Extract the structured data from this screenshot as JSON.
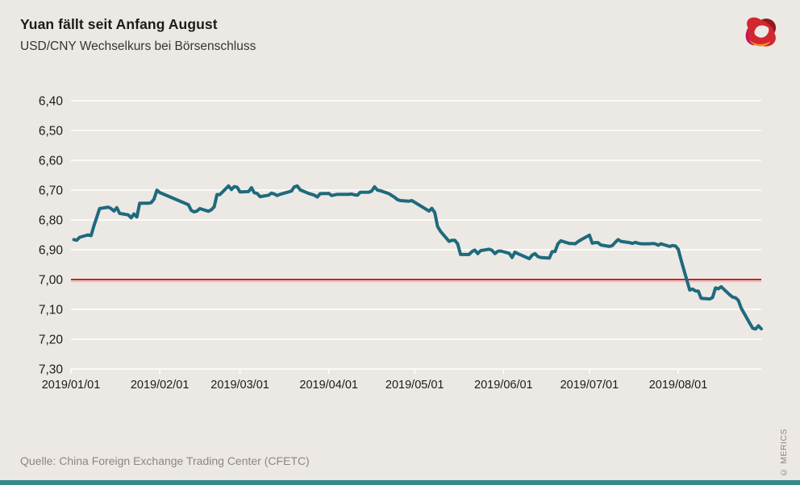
{
  "header": {
    "title": "Yuan fällt seit Anfang August",
    "subtitle": "USD/CNY Wechselkurs bei Börsenschluss"
  },
  "footer": {
    "source": "Quelle: China Foreign Exchange Trading Center (CFETC)",
    "copyright": "© MERICS"
  },
  "logo": {
    "name": "merics-logo"
  },
  "colors": {
    "background": "#ECE8E3",
    "line": "#1E6A7D",
    "reference_line": "#C82127",
    "reference_shadow": "#EBB9B4",
    "grid": "#FFFFFF",
    "axis_text": "#1d1b19",
    "muted_text": "#8d877f",
    "bottom_bar": "#37898D"
  },
  "chart_data": {
    "type": "line",
    "title": "Yuan fällt seit Anfang August",
    "subtitle": "USD/CNY Wechselkurs bei Börsenschluss",
    "xlabel": "",
    "ylabel": "",
    "grid": true,
    "legend": "none",
    "y_axis": {
      "min": 6.4,
      "max": 7.3,
      "inverted": true,
      "tick_step": 0.1,
      "tick_labels": [
        "6,40",
        "6,50",
        "6,60",
        "6,70",
        "6,80",
        "6,90",
        "7,00",
        "7,10",
        "7,20",
        "7,30"
      ]
    },
    "x_axis": {
      "start": "2019-01-01",
      "end": "2019-08-30",
      "tick_labels": [
        "2019/01/01",
        "2019/02/01",
        "2019/03/01",
        "2019/04/01",
        "2019/05/01",
        "2019/06/01",
        "2019/07/01",
        "2019/08/01"
      ]
    },
    "reference_line": {
      "value": 7.0,
      "color": "#C82127"
    },
    "series": [
      {
        "name": "USD/CNY Wechselkurs bei Börsenschluss",
        "color": "#1E6A7D",
        "points": [
          [
            "2019-01-02",
            6.866
          ],
          [
            "2019-01-03",
            6.868
          ],
          [
            "2019-01-04",
            6.858
          ],
          [
            "2019-01-07",
            6.85
          ],
          [
            "2019-01-08",
            6.853
          ],
          [
            "2019-01-09",
            6.82
          ],
          [
            "2019-01-10",
            6.791
          ],
          [
            "2019-01-11",
            6.762
          ],
          [
            "2019-01-14",
            6.757
          ],
          [
            "2019-01-15",
            6.762
          ],
          [
            "2019-01-16",
            6.77
          ],
          [
            "2019-01-17",
            6.759
          ],
          [
            "2019-01-18",
            6.778
          ],
          [
            "2019-01-21",
            6.783
          ],
          [
            "2019-01-22",
            6.793
          ],
          [
            "2019-01-23",
            6.78
          ],
          [
            "2019-01-24",
            6.79
          ],
          [
            "2019-01-25",
            6.744
          ],
          [
            "2019-01-28",
            6.744
          ],
          [
            "2019-01-29",
            6.742
          ],
          [
            "2019-01-30",
            6.73
          ],
          [
            "2019-01-31",
            6.7
          ],
          [
            "2019-02-01",
            6.708
          ],
          [
            "2019-02-11",
            6.749
          ],
          [
            "2019-02-12",
            6.768
          ],
          [
            "2019-02-13",
            6.773
          ],
          [
            "2019-02-14",
            6.77
          ],
          [
            "2019-02-15",
            6.762
          ],
          [
            "2019-02-18",
            6.771
          ],
          [
            "2019-02-19",
            6.766
          ],
          [
            "2019-02-20",
            6.756
          ],
          [
            "2019-02-21",
            6.715
          ],
          [
            "2019-02-22",
            6.715
          ],
          [
            "2019-02-25",
            6.686
          ],
          [
            "2019-02-26",
            6.698
          ],
          [
            "2019-02-27",
            6.688
          ],
          [
            "2019-02-28",
            6.69
          ],
          [
            "2019-03-01",
            6.706
          ],
          [
            "2019-03-04",
            6.705
          ],
          [
            "2019-03-05",
            6.692
          ],
          [
            "2019-03-06",
            6.709
          ],
          [
            "2019-03-07",
            6.711
          ],
          [
            "2019-03-08",
            6.722
          ],
          [
            "2019-03-11",
            6.717
          ],
          [
            "2019-03-12",
            6.71
          ],
          [
            "2019-03-13",
            6.713
          ],
          [
            "2019-03-14",
            6.718
          ],
          [
            "2019-03-15",
            6.714
          ],
          [
            "2019-03-18",
            6.706
          ],
          [
            "2019-03-19",
            6.703
          ],
          [
            "2019-03-20",
            6.689
          ],
          [
            "2019-03-21",
            6.686
          ],
          [
            "2019-03-22",
            6.699
          ],
          [
            "2019-03-25",
            6.711
          ],
          [
            "2019-03-26",
            6.714
          ],
          [
            "2019-03-27",
            6.717
          ],
          [
            "2019-03-28",
            6.723
          ],
          [
            "2019-03-29",
            6.712
          ],
          [
            "2019-04-01",
            6.711
          ],
          [
            "2019-04-02",
            6.718
          ],
          [
            "2019-04-03",
            6.716
          ],
          [
            "2019-04-04",
            6.714
          ],
          [
            "2019-04-08",
            6.714
          ],
          [
            "2019-04-09",
            6.713
          ],
          [
            "2019-04-10",
            6.716
          ],
          [
            "2019-04-11",
            6.717
          ],
          [
            "2019-04-12",
            6.707
          ],
          [
            "2019-04-15",
            6.707
          ],
          [
            "2019-04-16",
            6.703
          ],
          [
            "2019-04-17",
            6.689
          ],
          [
            "2019-04-18",
            6.7
          ],
          [
            "2019-04-19",
            6.702
          ],
          [
            "2019-04-22",
            6.712
          ],
          [
            "2019-04-23",
            6.718
          ],
          [
            "2019-04-24",
            6.724
          ],
          [
            "2019-04-25",
            6.732
          ],
          [
            "2019-04-26",
            6.735
          ],
          [
            "2019-04-29",
            6.737
          ],
          [
            "2019-04-30",
            6.735
          ],
          [
            "2019-05-06",
            6.77
          ],
          [
            "2019-05-07",
            6.761
          ],
          [
            "2019-05-08",
            6.775
          ],
          [
            "2019-05-09",
            6.822
          ],
          [
            "2019-05-10",
            6.838
          ],
          [
            "2019-05-13",
            6.872
          ],
          [
            "2019-05-14",
            6.868
          ],
          [
            "2019-05-15",
            6.868
          ],
          [
            "2019-05-16",
            6.88
          ],
          [
            "2019-05-17",
            6.916
          ],
          [
            "2019-05-20",
            6.916
          ],
          [
            "2019-05-21",
            6.906
          ],
          [
            "2019-05-22",
            6.901
          ],
          [
            "2019-05-23",
            6.913
          ],
          [
            "2019-05-24",
            6.903
          ],
          [
            "2019-05-27",
            6.898
          ],
          [
            "2019-05-28",
            6.902
          ],
          [
            "2019-05-29",
            6.913
          ],
          [
            "2019-05-30",
            6.905
          ],
          [
            "2019-05-31",
            6.904
          ],
          [
            "2019-06-03",
            6.912
          ],
          [
            "2019-06-04",
            6.926
          ],
          [
            "2019-06-05",
            6.908
          ],
          [
            "2019-06-06",
            6.913
          ],
          [
            "2019-06-10",
            6.93
          ],
          [
            "2019-06-11",
            6.918
          ],
          [
            "2019-06-12",
            6.913
          ],
          [
            "2019-06-13",
            6.923
          ],
          [
            "2019-06-14",
            6.926
          ],
          [
            "2019-06-17",
            6.928
          ],
          [
            "2019-06-18",
            6.906
          ],
          [
            "2019-06-19",
            6.906
          ],
          [
            "2019-06-20",
            6.88
          ],
          [
            "2019-06-21",
            6.87
          ],
          [
            "2019-06-24",
            6.879
          ],
          [
            "2019-06-25",
            6.879
          ],
          [
            "2019-06-26",
            6.88
          ],
          [
            "2019-06-27",
            6.873
          ],
          [
            "2019-06-28",
            6.867
          ],
          [
            "2019-07-01",
            6.851
          ],
          [
            "2019-07-02",
            6.878
          ],
          [
            "2019-07-03",
            6.876
          ],
          [
            "2019-07-04",
            6.876
          ],
          [
            "2019-07-05",
            6.884
          ],
          [
            "2019-07-08",
            6.889
          ],
          [
            "2019-07-09",
            6.886
          ],
          [
            "2019-07-10",
            6.875
          ],
          [
            "2019-07-11",
            6.866
          ],
          [
            "2019-07-12",
            6.872
          ],
          [
            "2019-07-15",
            6.876
          ],
          [
            "2019-07-16",
            6.879
          ],
          [
            "2019-07-17",
            6.875
          ],
          [
            "2019-07-18",
            6.878
          ],
          [
            "2019-07-19",
            6.88
          ],
          [
            "2019-07-22",
            6.88
          ],
          [
            "2019-07-23",
            6.879
          ],
          [
            "2019-07-24",
            6.88
          ],
          [
            "2019-07-25",
            6.885
          ],
          [
            "2019-07-26",
            6.88
          ],
          [
            "2019-07-29",
            6.889
          ],
          [
            "2019-07-30",
            6.886
          ],
          [
            "2019-07-31",
            6.887
          ],
          [
            "2019-08-01",
            6.898
          ],
          [
            "2019-08-02",
            6.934
          ],
          [
            "2019-08-05",
            7.035
          ],
          [
            "2019-08-06",
            7.032
          ],
          [
            "2019-08-07",
            7.038
          ],
          [
            "2019-08-08",
            7.039
          ],
          [
            "2019-08-09",
            7.063
          ],
          [
            "2019-08-12",
            7.065
          ],
          [
            "2019-08-13",
            7.06
          ],
          [
            "2019-08-14",
            7.028
          ],
          [
            "2019-08-15",
            7.031
          ],
          [
            "2019-08-16",
            7.024
          ],
          [
            "2019-08-19",
            7.051
          ],
          [
            "2019-08-20",
            7.059
          ],
          [
            "2019-08-21",
            7.061
          ],
          [
            "2019-08-22",
            7.07
          ],
          [
            "2019-08-23",
            7.096
          ],
          [
            "2019-08-26",
            7.147
          ],
          [
            "2019-08-27",
            7.163
          ],
          [
            "2019-08-28",
            7.166
          ],
          [
            "2019-08-29",
            7.155
          ],
          [
            "2019-08-30",
            7.165
          ]
        ]
      }
    ]
  }
}
